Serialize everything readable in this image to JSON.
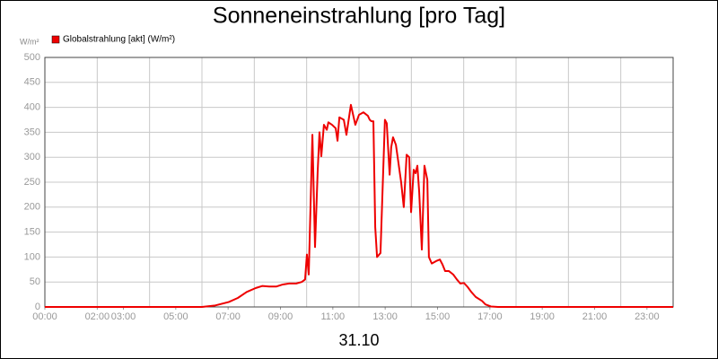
{
  "chart_data": {
    "type": "line",
    "title": "Sonneneinstrahlung [pro Tag]",
    "y_label": "W/m²",
    "x_label": "31.10",
    "legend": "top-left",
    "grid": true,
    "xlim": [
      0,
      24
    ],
    "ylim": [
      0,
      500
    ],
    "yticks": [
      0,
      50,
      100,
      150,
      200,
      250,
      300,
      350,
      400,
      450,
      500
    ],
    "xticks": [
      {
        "value": 0,
        "label": "00:00"
      },
      {
        "value": 2,
        "label": "02:00"
      },
      {
        "value": 3,
        "label": "03:00"
      },
      {
        "value": 5,
        "label": "05:00"
      },
      {
        "value": 7,
        "label": "07:00"
      },
      {
        "value": 9,
        "label": "09:00"
      },
      {
        "value": 11,
        "label": "11:00"
      },
      {
        "value": 13,
        "label": "13:00"
      },
      {
        "value": 15,
        "label": "15:00"
      },
      {
        "value": 17,
        "label": "17:00"
      },
      {
        "value": 19,
        "label": "19:00"
      },
      {
        "value": 21,
        "label": "21:00"
      },
      {
        "value": 23,
        "label": "23:00"
      }
    ],
    "xgrid": [
      2,
      4,
      6,
      8,
      10,
      12,
      14,
      16,
      18,
      20,
      22
    ],
    "x": [
      0,
      6.0,
      6.51,
      7.03,
      7.37,
      7.71,
      8.06,
      8.3,
      8.57,
      8.85,
      9.09,
      9.33,
      9.6,
      9.81,
      9.94,
      10.01,
      10.08,
      10.22,
      10.32,
      10.42,
      10.49,
      10.56,
      10.66,
      10.77,
      10.83,
      10.97,
      11.11,
      11.18,
      11.25,
      11.42,
      11.52,
      11.69,
      11.86,
      12.0,
      12.17,
      12.34,
      12.41,
      12.48,
      12.55,
      12.62,
      12.69,
      12.82,
      12.99,
      13.06,
      13.17,
      13.23,
      13.3,
      13.41,
      13.61,
      13.71,
      13.82,
      13.92,
      13.99,
      14.09,
      14.16,
      14.23,
      14.3,
      14.4,
      14.5,
      14.61,
      14.67,
      14.78,
      14.95,
      15.09,
      15.19,
      15.29,
      15.43,
      15.6,
      15.74,
      15.87,
      16.01,
      16.15,
      16.29,
      16.46,
      16.7,
      16.83,
      17.04,
      17.31,
      24
    ],
    "series": [
      {
        "name": "Globalstrahlung [akt] (W/m²)",
        "color": "#ee0000",
        "values": [
          0,
          0,
          3,
          10,
          18,
          30,
          38,
          42,
          41,
          41,
          45,
          47,
          47,
          50,
          55,
          105,
          65,
          345,
          120,
          270,
          350,
          302,
          365,
          355,
          370,
          365,
          358,
          333,
          380,
          375,
          345,
          405,
          365,
          385,
          390,
          383,
          375,
          372,
          372,
          160,
          100,
          108,
          375,
          368,
          265,
          320,
          340,
          325,
          250,
          200,
          305,
          300,
          190,
          275,
          268,
          283,
          230,
          115,
          283,
          255,
          100,
          87,
          92,
          95,
          85,
          72,
          72,
          65,
          55,
          47,
          48,
          40,
          30,
          20,
          12,
          5,
          1,
          0,
          0
        ]
      }
    ]
  }
}
